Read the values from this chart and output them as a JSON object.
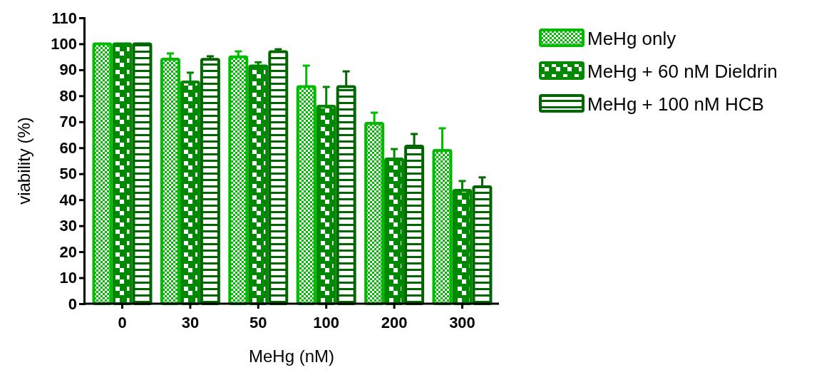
{
  "chart_data": {
    "type": "bar",
    "xlabel": "MeHg (nM)",
    "ylabel": "viability (%)",
    "categories": [
      "0",
      "30",
      "50",
      "100",
      "200",
      "300"
    ],
    "ylim": [
      0,
      110
    ],
    "yticks": [
      0,
      10,
      20,
      30,
      40,
      50,
      60,
      70,
      80,
      90,
      100,
      110
    ],
    "grid": false,
    "legend": "top right",
    "series": [
      {
        "name": "MeHg only",
        "color": "#00bb00",
        "values": [
          100,
          94.1,
          95,
          83.5,
          69.4,
          59
        ],
        "errors": [
          null,
          2.2,
          2.1,
          8.1,
          4.1,
          8.5
        ]
      },
      {
        "name": "MeHg + 60 nM Dieldrin",
        "color": "#008800",
        "values": [
          100,
          85.3,
          91.5,
          76,
          55.7,
          43.6
        ],
        "errors": [
          null,
          3.6,
          1.4,
          7.4,
          3.8,
          3.6
        ]
      },
      {
        "name": "MeHg + 100 nM HCB",
        "color": "#006600",
        "values": [
          100,
          94,
          97,
          83.5,
          60.6,
          45
        ],
        "errors": [
          null,
          1.2,
          0.9,
          5.9,
          4.7,
          3.6
        ]
      }
    ]
  }
}
